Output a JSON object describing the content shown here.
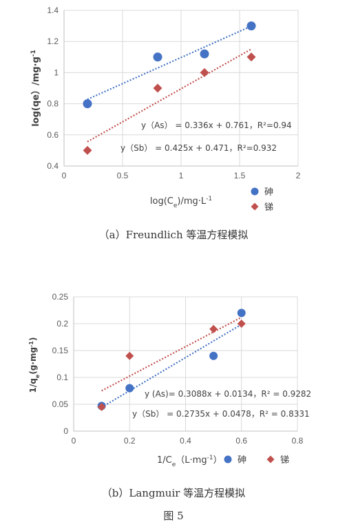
{
  "chart_data": [
    {
      "type": "scatter",
      "xlabel_parts": [
        "log(C",
        "e",
        ")/mg·L",
        "-1"
      ],
      "ylabel_parts": [
        "log(qe）/mg·g",
        "-1"
      ],
      "xlim": [
        0,
        2
      ],
      "ylim": [
        0.4,
        1.4
      ],
      "xticks": [
        0,
        0.5,
        1,
        1.5,
        2
      ],
      "yticks": [
        0.4,
        0.6,
        0.8,
        1,
        1.2,
        1.4
      ],
      "xtick_labels": [
        "0",
        "0.5",
        "1",
        "1.5",
        "2"
      ],
      "ytick_labels": [
        "0.4",
        "0.6",
        "0.8",
        "1",
        "1.2",
        "1.4"
      ],
      "grid": true,
      "legend_position": "bottom-right",
      "series": [
        {
          "name": "砷",
          "color": "#4472C4",
          "marker": "circle",
          "points": [
            [
              0.2,
              0.8
            ],
            [
              0.8,
              1.1
            ],
            [
              1.2,
              1.12
            ],
            [
              1.6,
              1.3
            ]
          ],
          "trendline": {
            "slope": 0.336,
            "intercept": 0.761,
            "x_range": [
              0.2,
              1.6
            ]
          },
          "equation": "y（As）  = 0.336x + 0.761，R²=0.94"
        },
        {
          "name": "锑",
          "color": "#C0504D",
          "marker": "diamond",
          "points": [
            [
              0.2,
              0.5
            ],
            [
              0.8,
              0.9
            ],
            [
              1.2,
              1.0
            ],
            [
              1.6,
              1.1
            ]
          ],
          "trendline": {
            "slope": 0.425,
            "intercept": 0.471,
            "x_range": [
              0.2,
              1.6
            ]
          },
          "equation": "y（Sb） = 0.425x + 0.471，R²=0.932"
        }
      ]
    },
    {
      "type": "scatter",
      "xlabel_parts": [
        "1/C",
        "e",
        "（L·mg",
        "-1",
        "）"
      ],
      "ylabel_parts": [
        "1/q",
        "e",
        "(g·mg",
        "-1",
        ")"
      ],
      "xlim": [
        0,
        0.8
      ],
      "ylim": [
        0,
        0.25
      ],
      "xticks": [
        0,
        0.2,
        0.4,
        0.6,
        0.8
      ],
      "yticks": [
        0,
        0.05,
        0.1,
        0.15,
        0.2,
        0.25
      ],
      "xtick_labels": [
        "0",
        "0.2",
        "0.4",
        "0.6",
        "0.8"
      ],
      "ytick_labels": [
        "0",
        "0.05",
        "0.1",
        "0.15",
        "0.2",
        "0.25"
      ],
      "grid": true,
      "legend_position": "bottom",
      "series": [
        {
          "name": "砷",
          "color": "#4472C4",
          "marker": "circle",
          "points": [
            [
              0.1,
              0.047
            ],
            [
              0.2,
              0.08
            ],
            [
              0.5,
              0.14
            ],
            [
              0.6,
              0.22
            ]
          ],
          "trendline": {
            "slope": 0.3088,
            "intercept": 0.0134,
            "x_range": [
              0.1,
              0.6
            ]
          },
          "equation": "y (As)= 0.3088x + 0.0134，R² = 0.9282"
        },
        {
          "name": "锑",
          "color": "#C0504D",
          "marker": "diamond",
          "points": [
            [
              0.1,
              0.045
            ],
            [
              0.2,
              0.14
            ],
            [
              0.5,
              0.19
            ],
            [
              0.6,
              0.2
            ]
          ],
          "trendline": {
            "slope": 0.2735,
            "intercept": 0.0478,
            "x_range": [
              0.1,
              0.6
            ]
          },
          "equation": "y（Sb） = 0.2735x + 0.0478，R² = 0.8331"
        }
      ]
    }
  ],
  "captions": {
    "a": "（a）Freundlich 等温方程模拟",
    "b": "（b）Langmuir 等温方程模拟",
    "figure": "图 5"
  }
}
